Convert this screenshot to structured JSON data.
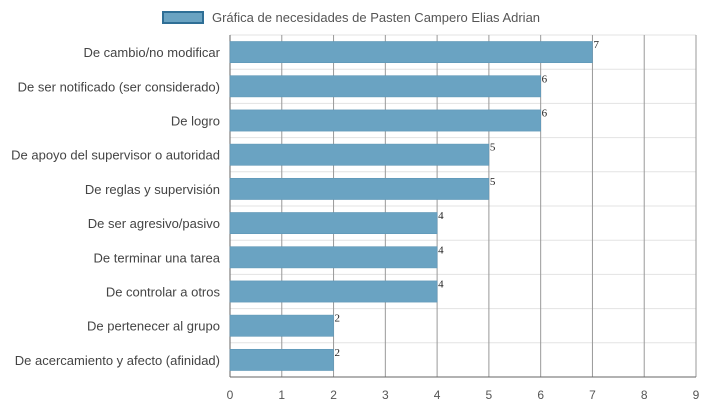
{
  "chart_data": {
    "type": "bar",
    "orientation": "horizontal",
    "legend_position": "top-center",
    "grid": true,
    "xlim": [
      0,
      9
    ],
    "ticks": [
      "0",
      "1",
      "2",
      "3",
      "4",
      "5",
      "6",
      "7",
      "8",
      "9"
    ],
    "categories": [
      "De cambio/no modificar",
      "De ser notificado (ser considerado)",
      "De logro",
      "De apoyo del supervisor o autoridad",
      "De reglas y supervisión",
      "De ser agresivo/pasivo",
      "De terminar una tarea",
      "De controlar a otros",
      "De pertenecer al grupo",
      "De acercamiento y afecto (afinidad)"
    ],
    "series": [
      {
        "name": "Gráfica de necesidades de Pasten Campero Elias Adrian",
        "values": [
          7,
          6,
          6,
          5,
          5,
          4,
          4,
          4,
          2,
          2
        ],
        "color": "#6aa3c2",
        "border_color": "#2f6f96"
      }
    ]
  }
}
